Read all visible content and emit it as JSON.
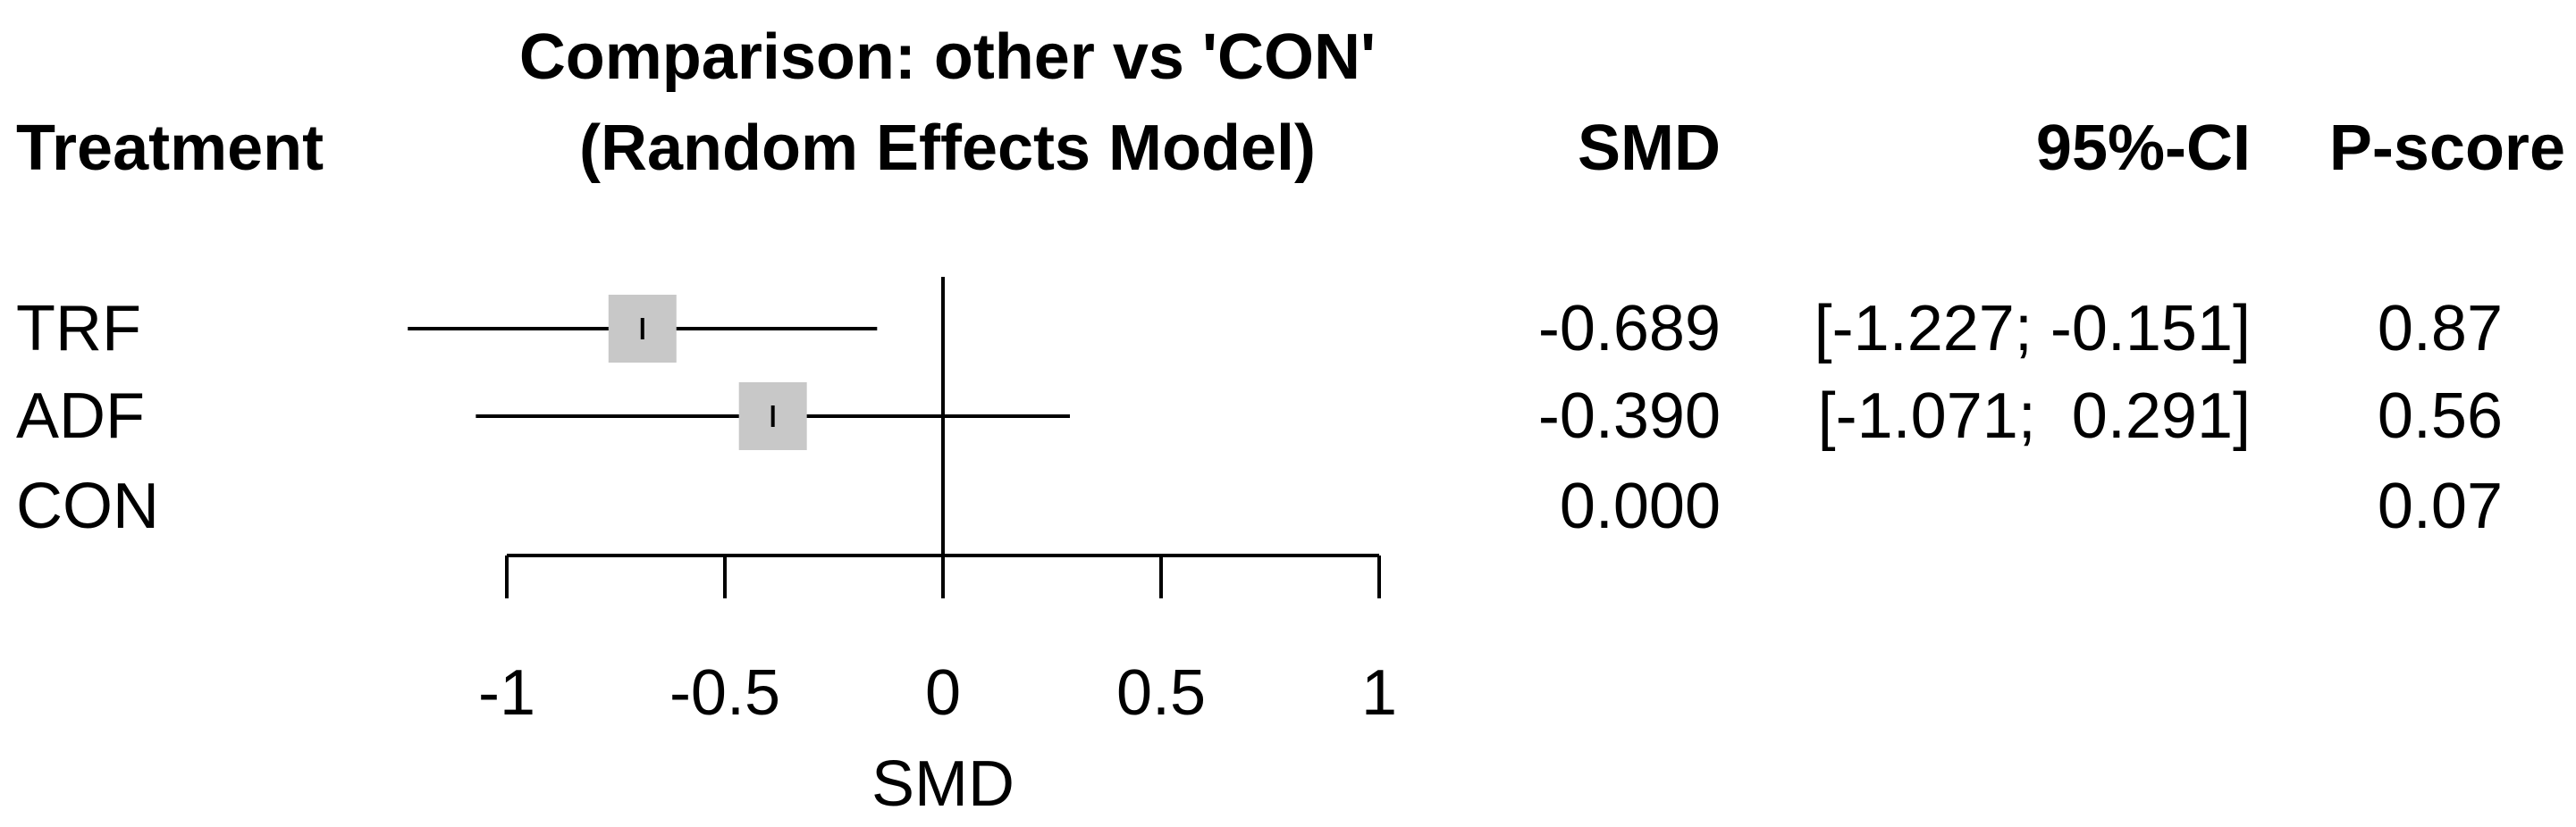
{
  "chart_data": {
    "type": "forest",
    "title_line1": "Comparison: other vs 'CON'",
    "title_line2": "(Random Effects Model)",
    "columns": {
      "treatment": "Treatment",
      "smd": "SMD",
      "ci": "95%-CI",
      "pscore": "P-score"
    },
    "rows": [
      {
        "treatment": "TRF",
        "smd": -0.689,
        "lower": -1.227,
        "upper": -0.151,
        "smd_text": "-0.689",
        "ci_text": "[-1.227; -0.151]",
        "pscore": "0.87",
        "weight": 1.0
      },
      {
        "treatment": "ADF",
        "smd": -0.39,
        "lower": -1.071,
        "upper": 0.291,
        "smd_text": "-0.390",
        "ci_text": "[-1.071;  0.291]",
        "pscore": "0.56",
        "weight": 1.0
      },
      {
        "treatment": "CON",
        "smd": 0.0,
        "lower": null,
        "upper": null,
        "smd_text": "0.000",
        "ci_text": "",
        "pscore": "0.07",
        "weight": 0
      }
    ],
    "xaxis": {
      "label": "SMD",
      "range": [
        -1,
        1
      ],
      "ticks": [
        -1,
        -0.5,
        0,
        0.5,
        1
      ],
      "tick_labels": [
        "-1",
        "-0.5",
        "0",
        "0.5",
        "1"
      ]
    },
    "null_line": 0,
    "colors": {
      "box": "#c8c8c8",
      "line": "#000000"
    }
  }
}
